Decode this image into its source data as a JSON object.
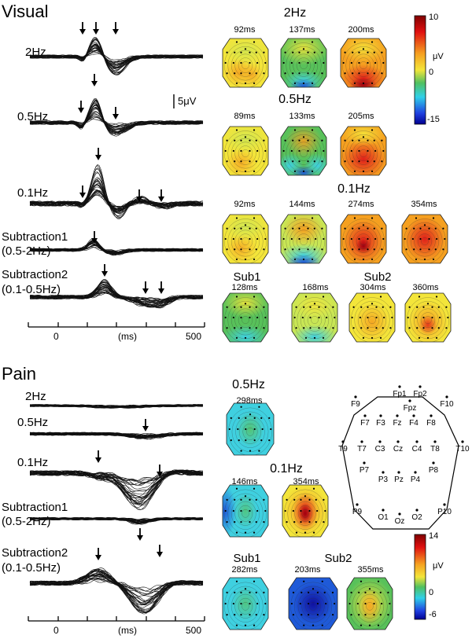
{
  "visual": {
    "title": "Visual",
    "conditions": [
      {
        "label": "2Hz",
        "sub": ""
      },
      {
        "label": "0.5Hz",
        "sub": ""
      },
      {
        "label": "0.1Hz",
        "sub": ""
      },
      {
        "label": "Subtraction1",
        "sub": "(0.5-2Hz)"
      },
      {
        "label": "Subtraction2",
        "sub": "(0.1-0.5Hz)"
      }
    ],
    "scale_bar": "5μV",
    "axis": {
      "ticks": [
        "0",
        "(ms)",
        "500"
      ]
    },
    "map_groups": [
      {
        "title": "2Hz",
        "latencies": [
          "92ms",
          "137ms",
          "200ms"
        ]
      },
      {
        "title": "0.5Hz",
        "latencies": [
          "89ms",
          "133ms",
          "205ms"
        ]
      },
      {
        "title": "0.1Hz",
        "latencies": [
          "92ms",
          "144ms",
          "274ms",
          "354ms"
        ]
      },
      {
        "title": "Sub1",
        "latencies": [
          "128ms",
          "168ms"
        ]
      },
      {
        "title": "Sub2",
        "latencies": [
          "304ms",
          "360ms"
        ]
      }
    ],
    "colorbar": {
      "max": "10",
      "unit": "μV",
      "mid": "0",
      "min": "-15"
    }
  },
  "pain": {
    "title": "Pain",
    "conditions": [
      {
        "label": "2Hz",
        "sub": ""
      },
      {
        "label": "0.5Hz",
        "sub": ""
      },
      {
        "label": "0.1Hz",
        "sub": ""
      },
      {
        "label": "Subtraction1",
        "sub": "(0.5-2Hz)"
      },
      {
        "label": "Subtraction2",
        "sub": "(0.1-0.5Hz)"
      }
    ],
    "axis": {
      "ticks": [
        "0",
        "(ms)",
        "500"
      ]
    },
    "map_groups": [
      {
        "title": "0.5Hz",
        "latencies": [
          "298ms"
        ]
      },
      {
        "title": "0.1Hz",
        "latencies": [
          "146ms",
          "354ms"
        ]
      },
      {
        "title": "Sub1",
        "latencies": [
          "282ms"
        ]
      },
      {
        "title": "Sub2",
        "latencies": [
          "203ms",
          "355ms"
        ]
      }
    ],
    "colorbar": {
      "max": "14",
      "unit": "μV",
      "mid": "0",
      "min": "-6"
    }
  },
  "electrodes": [
    "Fp1",
    "Fp2",
    "F9",
    "F10",
    "Fpz",
    "F7",
    "F3",
    "Fz",
    "F4",
    "F8",
    "T9",
    "T10",
    "T7",
    "C3",
    "Cz",
    "C4",
    "T8",
    "P7",
    "P8",
    "P3",
    "Pz",
    "P4",
    "P9",
    "P10",
    "O1",
    "Oz",
    "O2"
  ]
}
